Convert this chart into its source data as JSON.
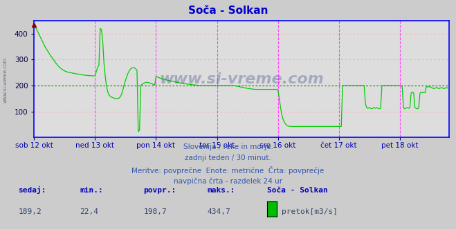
{
  "title": "Soča - Solkan",
  "title_color": "#0000cc",
  "bg_color": "#cccccc",
  "plot_bg_color": "#dddddd",
  "grid_color_h": "#ffaaaa",
  "grid_color_v": "#ff44ff",
  "avg_line_color": "#009900",
  "avg_value": 198.7,
  "line_color": "#00cc00",
  "border_color": "#0000ff",
  "x_label_color": "#0000aa",
  "y_label_color": "#000044",
  "text_color": "#3355aa",
  "watermark_color": "#223377",
  "marker_color": "#880000",
  "arrow_color": "#cc0000",
  "ylim": [
    0,
    450
  ],
  "yticks": [
    100,
    200,
    300,
    400
  ],
  "xlabel_days": [
    "sob 12 okt",
    "ned 13 okt",
    "pon 14 okt",
    "tor 15 okt",
    "sre 16 okt",
    "čet 17 okt",
    "pet 18 okt"
  ],
  "day_positions": [
    0,
    48,
    96,
    144,
    192,
    240,
    288
  ],
  "total_points": 336,
  "footer_line1": "Slovenija / reke in morje.",
  "footer_line2": "zadnji teden / 30 minut.",
  "footer_line3": "Meritve: povprečne  Enote: metrične  Črta: povprečje",
  "footer_line4": "navpična črta - razdelek 24 ur",
  "stat_labels": [
    "sedaj:",
    "min.:",
    "povpr.:",
    "maks.:",
    "Soča - Solkan"
  ],
  "stat_values": [
    "189,2",
    "22,4",
    "198,7",
    "434,7"
  ],
  "legend_label": "pretok[m3/s]",
  "legend_color": "#00bb00",
  "watermark": "www.si-vreme.com",
  "left_watermark": "www.si-vreme.com"
}
